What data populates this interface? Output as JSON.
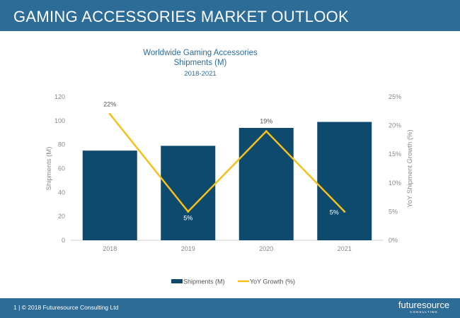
{
  "header": {
    "title": "GAMING ACCESSORIES MARKET OUTLOOK"
  },
  "footer": {
    "text": "1  |  © 2018 Futuresource Consulting Ltd",
    "logo_text": "futuresource",
    "logo_subtext": "CONSULTING"
  },
  "colors": {
    "header": "#2e6c98",
    "bars": "#0e4a6e",
    "line": "#f6c018",
    "title": "#2e6c98"
  },
  "chart_data": {
    "type": "bar",
    "title_lines": [
      "Worldwide Gaming Accessories",
      "Shipments (M)"
    ],
    "subtitle": "2018-2021",
    "categories": [
      "2018",
      "2019",
      "2020",
      "2021"
    ],
    "series": [
      {
        "name": "Shipments (M)",
        "type": "bar",
        "axis": "left",
        "values": [
          75,
          79,
          94,
          99
        ]
      },
      {
        "name": "YoY Growth (%)",
        "type": "line",
        "axis": "right",
        "values": [
          22,
          5,
          19,
          5
        ]
      }
    ],
    "data_labels": [
      "22%",
      "5%",
      "19%",
      "5%"
    ],
    "ylabel": "Shipments (M)",
    "ylabel_right": "YoY Shipment Growth (%)",
    "ylim": [
      0,
      120
    ],
    "y_ticks": [
      "0",
      "20",
      "40",
      "60",
      "80",
      "100",
      "120"
    ],
    "ylim_right": [
      0,
      25
    ],
    "y_ticks_right": [
      "0%",
      "5%",
      "10%",
      "15%",
      "20%",
      "25%"
    ],
    "grid": false,
    "legend_position": "bottom"
  }
}
